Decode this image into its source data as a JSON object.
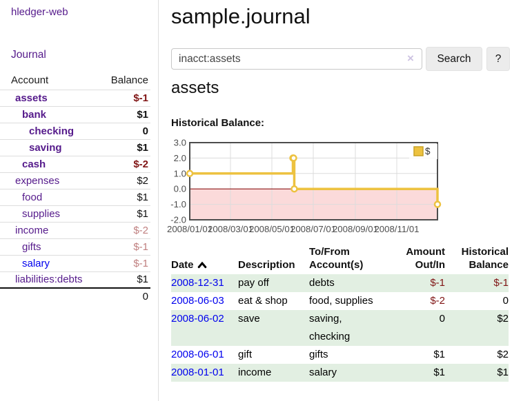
{
  "sidebar": {
    "brand": "hledger-web",
    "journal_link": "Journal",
    "accounts": {
      "col_account": "Account",
      "col_balance": "Balance",
      "rows": [
        {
          "name": "assets",
          "balance": "$-1",
          "indent": 1,
          "bold": true,
          "balance_tone": "neg-strong",
          "name_tone": "purple"
        },
        {
          "name": "bank",
          "balance": "$1",
          "indent": 2,
          "bold": true,
          "balance_tone": "plain",
          "name_tone": "purple"
        },
        {
          "name": "checking",
          "balance": "0",
          "indent": 3,
          "bold": true,
          "balance_tone": "plain",
          "name_tone": "purple"
        },
        {
          "name": "saving",
          "balance": "$1",
          "indent": 3,
          "bold": true,
          "balance_tone": "plain",
          "name_tone": "purple"
        },
        {
          "name": "cash",
          "balance": "$-2",
          "indent": 2,
          "bold": true,
          "balance_tone": "neg-strong",
          "name_tone": "purple"
        },
        {
          "name": "expenses",
          "balance": "$2",
          "indent": 1,
          "bold": false,
          "balance_tone": "plain",
          "name_tone": "purple"
        },
        {
          "name": "food",
          "balance": "$1",
          "indent": 2,
          "bold": false,
          "balance_tone": "plain",
          "name_tone": "purple"
        },
        {
          "name": "supplies",
          "balance": "$1",
          "indent": 2,
          "bold": false,
          "balance_tone": "plain",
          "name_tone": "purple"
        },
        {
          "name": "income",
          "balance": "$-2",
          "indent": 1,
          "bold": false,
          "balance_tone": "neg-soft",
          "name_tone": "purple"
        },
        {
          "name": "gifts",
          "balance": "$-1",
          "indent": 2,
          "bold": false,
          "balance_tone": "neg-soft",
          "name_tone": "purple"
        },
        {
          "name": "salary",
          "balance": "$-1",
          "indent": 2,
          "bold": false,
          "balance_tone": "neg-soft",
          "name_tone": "blue"
        },
        {
          "name": "liabilities:debts",
          "balance": "$1",
          "indent": 1,
          "bold": false,
          "balance_tone": "plain",
          "name_tone": "purple"
        }
      ],
      "total": "0"
    }
  },
  "main": {
    "title": "sample.journal",
    "search": {
      "value": "inacct:assets",
      "clear_icon": "×",
      "search_button": "Search",
      "help_button": "?"
    },
    "account_heading": "assets",
    "chart_label": "Historical Balance:",
    "register": {
      "headers": {
        "date": "Date",
        "description": "Description",
        "tofrom_line1": "To/From",
        "tofrom_line2": "Account(s)",
        "amount_line1": "Amount",
        "amount_line2": "Out/In",
        "balance_line1": "Historical",
        "balance_line2": "Balance"
      },
      "rows": [
        {
          "date": "2008-12-31",
          "description": "pay off",
          "accounts": "debts",
          "amount": "$-1",
          "amount_tone": "neg",
          "balance": "$-1",
          "balance_tone": "neg",
          "shaded": true
        },
        {
          "date": "2008-06-03",
          "description": "eat & shop",
          "accounts": "food, supplies",
          "amount": "$-2",
          "amount_tone": "neg",
          "balance": "0",
          "balance_tone": "plain",
          "shaded": false
        },
        {
          "date": "2008-06-02",
          "description": "save",
          "accounts": "saving, checking",
          "amount": "0",
          "amount_tone": "plain",
          "balance": "$2",
          "balance_tone": "plain",
          "shaded": true
        },
        {
          "date": "2008-06-01",
          "description": "gift",
          "accounts": "gifts",
          "amount": "$1",
          "amount_tone": "plain",
          "balance": "$2",
          "balance_tone": "plain",
          "shaded": false
        },
        {
          "date": "2008-01-01",
          "description": "income",
          "accounts": "salary",
          "amount": "$1",
          "amount_tone": "plain",
          "balance": "$1",
          "balance_tone": "plain",
          "shaded": true
        }
      ]
    }
  },
  "chart_data": {
    "type": "line",
    "subtype": "step-after",
    "title": "Historical Balance:",
    "series": [
      {
        "name": "$",
        "color": "#edc240",
        "points": [
          [
            "2008-01-01",
            1
          ],
          [
            "2008-06-01",
            2
          ],
          [
            "2008-06-02",
            2
          ],
          [
            "2008-06-03",
            0
          ],
          [
            "2008-12-31",
            -1
          ]
        ]
      }
    ],
    "x_range": [
      "2008-01-01",
      "2008-12-31"
    ],
    "x_ticks": [
      "2008/01/01",
      "2008/03/01",
      "2008/05/01",
      "2008/07/01",
      "2008/09/01",
      "2008/11/01"
    ],
    "y_ticks": [
      3.0,
      2.0,
      1.0,
      0.0,
      -1.0,
      -2.0
    ],
    "ylim": [
      -2,
      3
    ],
    "grid": true,
    "legend_position": "top-right",
    "negative_region_fill": "#fbdada",
    "zero_line_color": "#8b1616",
    "grid_color": "#dcdcdc",
    "border_color": "#4d4d4d",
    "tick_label_color": "#4d4d4d"
  },
  "colors": {
    "link_purple": "#551a8b",
    "link_blue": "#0000ee",
    "negative_strong": "#801515",
    "negative_soft": "#c08080",
    "row_shade": "#e2efe2",
    "accent_gold": "#edc240"
  }
}
